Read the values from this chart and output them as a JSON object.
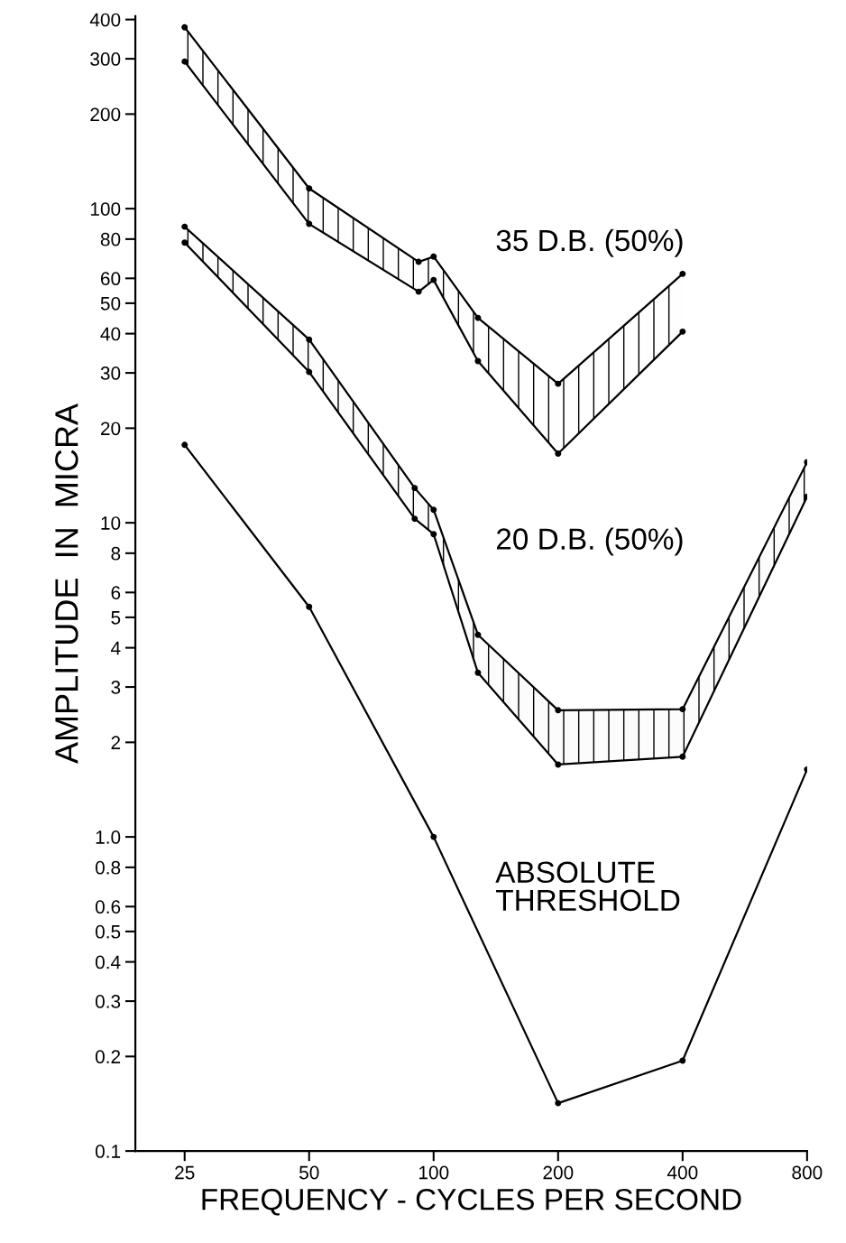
{
  "chart_data": {
    "type": "line",
    "xlabel": "FREQUENCY - CYCLES PER SECOND",
    "ylabel": "AMPLITUDE  IN  MICRA",
    "log": "xy",
    "grid": false,
    "legend": false,
    "marker": "circle",
    "line_style": "solid",
    "xlim": [
      19,
      800
    ],
    "xticks": [
      25,
      50,
      100,
      200,
      400,
      800
    ],
    "ylim": [
      0.1,
      410
    ],
    "yticks": [
      {
        "value": 0.1,
        "label": "0.1"
      },
      {
        "value": 0.2,
        "label": "0.2"
      },
      {
        "value": 0.3,
        "label": "0.3"
      },
      {
        "value": 0.4,
        "label": "0.4"
      },
      {
        "value": 0.5,
        "label": "0.5"
      },
      {
        "value": 0.6,
        "label": "0.6"
      },
      {
        "value": 0.8,
        "label": "0.8"
      },
      {
        "value": 1,
        "label": "1.0"
      },
      2,
      3,
      4,
      5,
      6,
      8,
      10,
      20,
      30,
      40,
      50,
      60,
      80,
      100,
      200,
      300,
      400
    ],
    "series": [
      {
        "color": "#000000",
        "x": [
          25,
          50,
          92,
          100,
          128,
          200,
          400
        ],
        "values": [
          378,
          116,
          67.7,
          70.4,
          44.9,
          27.7,
          62
        ]
      },
      {
        "color": "#000000",
        "x": [
          25,
          50,
          92,
          100,
          128,
          200,
          400
        ],
        "values": [
          294,
          89.4,
          54.4,
          59.3,
          32.7,
          16.6,
          40.6
        ],
        "lower": [
          294,
          89.4,
          54.4,
          59.3,
          32.7,
          16.6,
          40.6
        ],
        "upper": [
          378,
          116,
          67.7,
          70.4,
          44.9,
          27.7,
          62
        ]
      },
      {
        "color": "#000000",
        "x": [
          25,
          50,
          90,
          100,
          128,
          200,
          400,
          800
        ],
        "values": [
          87.6,
          38.3,
          12.9,
          11,
          4.4,
          2.53,
          2.55,
          15.6
        ]
      },
      {
        "color": "#000000",
        "x": [
          25,
          50,
          90,
          100,
          128,
          200,
          400,
          800
        ],
        "values": [
          78,
          30.2,
          10.3,
          9.2,
          3.33,
          1.7,
          1.8,
          12.1
        ],
        "lower": [
          78,
          30.2,
          10.3,
          9.2,
          3.33,
          1.7,
          1.8,
          12.1
        ],
        "upper": [
          87.6,
          38.3,
          12.9,
          11,
          4.4,
          2.53,
          2.55,
          15.6
        ]
      },
      {
        "color": "#000000",
        "x": [
          25,
          50,
          100,
          200,
          400,
          800
        ],
        "values": [
          17.7,
          5.4,
          1.0,
          0.142,
          0.194,
          1.64
        ]
      }
    ],
    "annotations": [
      "35 D.B. (50%)",
      "20 D.B. (50%)",
      "ABSOLUTE\nTHRESHOLD"
    ]
  }
}
